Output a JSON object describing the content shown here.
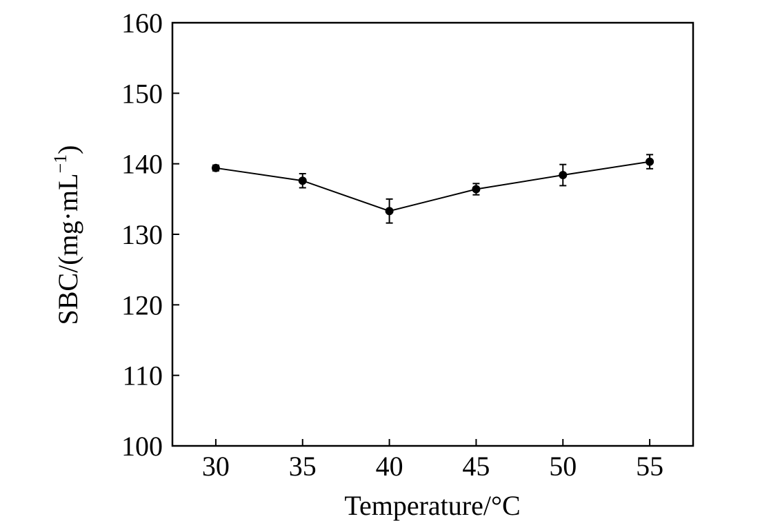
{
  "chart_data": {
    "type": "line",
    "title": "",
    "xlabel": "Temperature/°C",
    "ylabel": {
      "prefix": "SBC/(mg·mL",
      "superscript": "−1",
      "suffix": ")"
    },
    "xlim": [
      27.5,
      57.5
    ],
    "ylim": [
      100,
      160
    ],
    "xticks": [
      30,
      35,
      40,
      45,
      50,
      55
    ],
    "yticks": [
      100,
      110,
      120,
      130,
      140,
      150,
      160
    ],
    "grid": false,
    "legend": "none",
    "series": [
      {
        "x": [
          30,
          35,
          40,
          45,
          50,
          55
        ],
        "y": [
          139.4,
          137.6,
          133.3,
          136.4,
          138.4,
          140.3
        ],
        "yerr": [
          0.4,
          1.0,
          1.7,
          0.8,
          1.5,
          1.0
        ],
        "color": "#000000",
        "marker": "circle"
      }
    ]
  }
}
